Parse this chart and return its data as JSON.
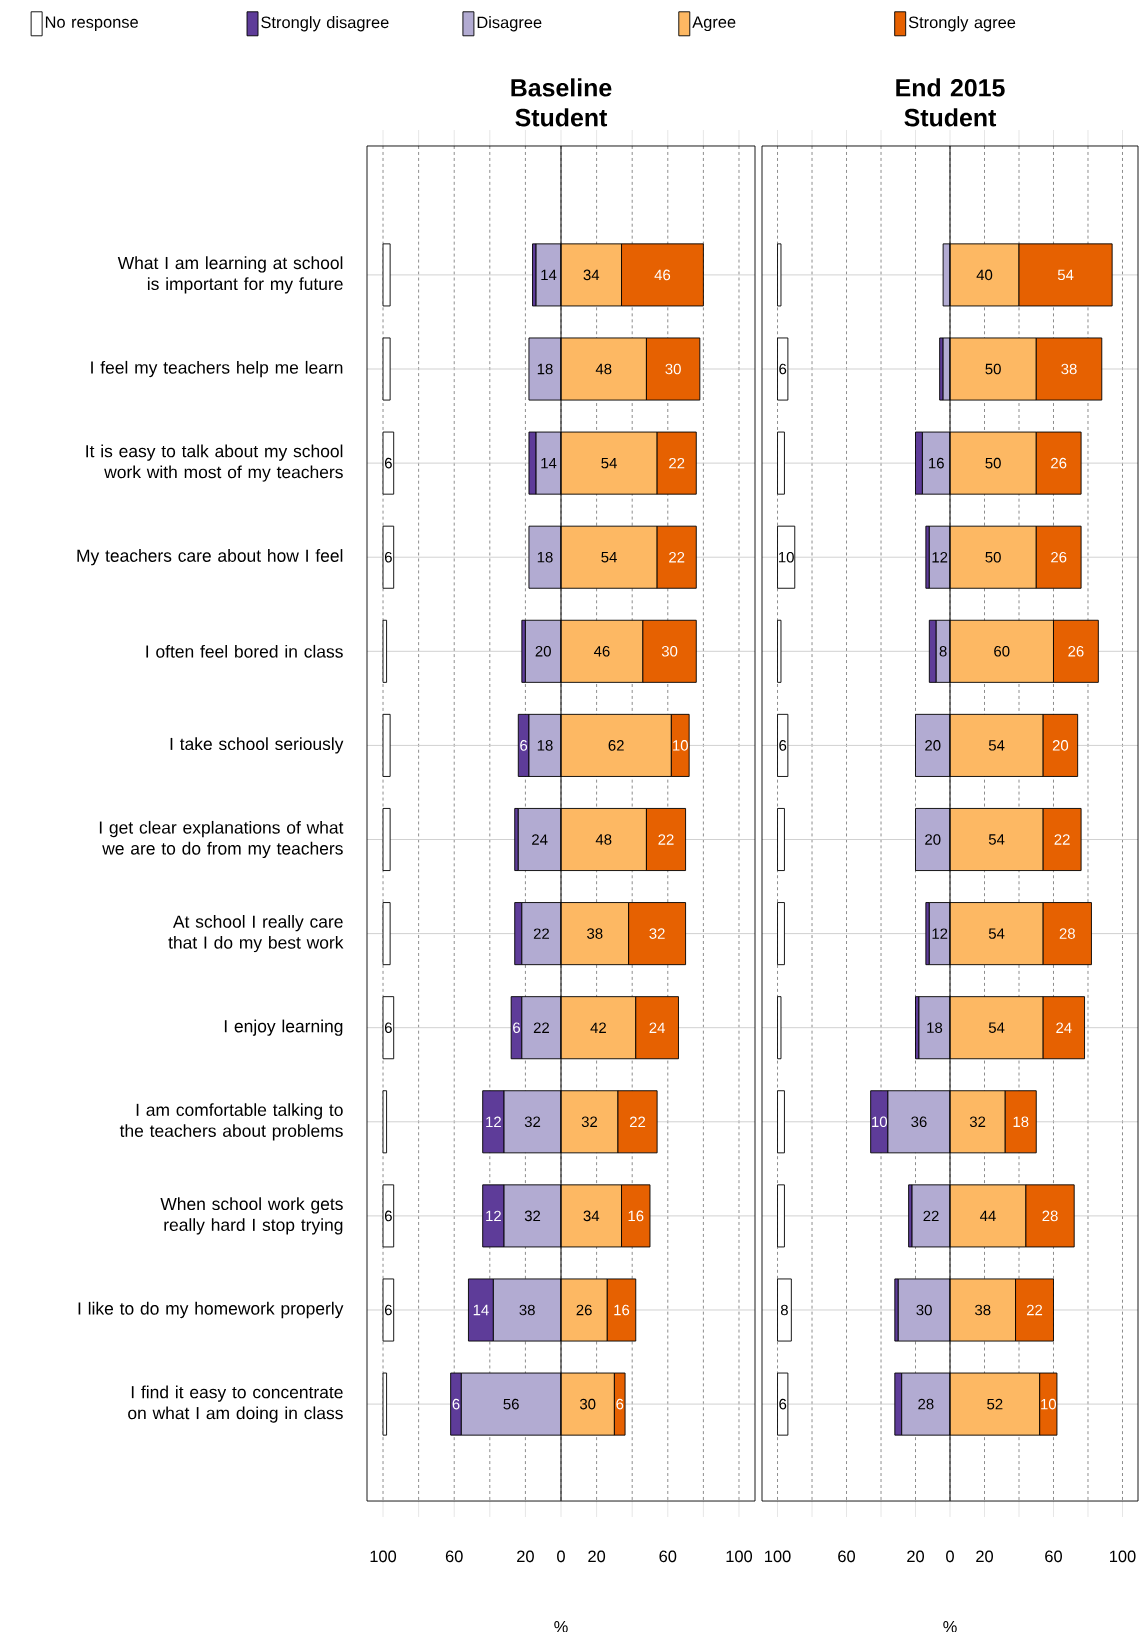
{
  "chart_data": [
    {
      "type": "bar",
      "orientation": "horizontal",
      "title": "Baseline Student",
      "xlabel": "%",
      "categories": [
        "What I am learning at school is important for my future",
        "I feel my teachers help me learn",
        "It is easy to talk about my school work with most of my teachers",
        "My teachers care about how I feel",
        "I often feel bored in class",
        "I take school seriously",
        "I get clear explanations of what we are to do from my teachers",
        "At school I really care that I do my best work",
        "I enjoy learning",
        "I am comfortable talking to the teachers about problems",
        "When school work gets really hard I stop trying",
        "I like to do my homework properly",
        "I find it easy to concentrate on what I am doing in class"
      ],
      "xlim": [
        -109,
        109
      ],
      "xticks": [
        {
          "value": -100,
          "label": "100"
        },
        {
          "value": -80,
          "label": null
        },
        {
          "value": -60,
          "label": "60"
        },
        {
          "value": -40,
          "label": null
        },
        {
          "value": -20,
          "label": "20"
        },
        0,
        20,
        {
          "value": 40,
          "label": null
        },
        60,
        {
          "value": 80,
          "label": null
        },
        100
      ],
      "grid": true,
      "legend": "top",
      "ref_lines": [
        {
          "axis": "x",
          "value": 0,
          "color": "#000000"
        }
      ],
      "series": [
        {
          "name": "No response",
          "color": "#ffffff",
          "values": [
            4,
            4,
            6,
            6,
            2,
            4,
            4,
            4,
            6,
            2,
            6,
            6,
            2
          ],
          "base": [
            -100,
            -100,
            -100,
            -100,
            -100,
            -100,
            -100,
            -100,
            -100,
            -100,
            -100,
            -100,
            -100
          ],
          "value_labels": [
            null,
            null,
            "6",
            "6",
            null,
            null,
            null,
            null,
            "6",
            null,
            "6",
            "6",
            null
          ]
        },
        {
          "name": "Strongly disagree",
          "color": "#5e3c99",
          "values": [
            -2,
            null,
            -4,
            null,
            -2,
            -6,
            -2,
            -4,
            -6,
            -12,
            -12,
            -14,
            -6
          ],
          "base": [
            -14,
            null,
            -14,
            null,
            -20,
            -18,
            -24,
            -22,
            -22,
            -32,
            -32,
            -38,
            -56
          ],
          "value_labels": [
            null,
            null,
            null,
            null,
            null,
            "6",
            null,
            null,
            "6",
            "12",
            "12",
            "14",
            "6"
          ]
        },
        {
          "name": "Disagree",
          "color": "#b2abd2",
          "values": [
            -14,
            -18,
            -14,
            -18,
            -20,
            -18,
            -24,
            -22,
            -22,
            -32,
            -32,
            -38,
            -56
          ],
          "base": [
            0,
            0,
            0,
            0,
            0,
            0,
            0,
            0,
            0,
            0,
            0,
            0,
            0
          ],
          "value_labels": [
            "14",
            "18",
            "14",
            "18",
            "20",
            "18",
            "24",
            "22",
            "22",
            "32",
            "32",
            "38",
            "56"
          ]
        },
        {
          "name": "Agree",
          "color": "#fdb863",
          "values": [
            34,
            48,
            54,
            54,
            46,
            62,
            48,
            38,
            42,
            32,
            34,
            26,
            30
          ],
          "base": [
            0,
            0,
            0,
            0,
            0,
            0,
            0,
            0,
            0,
            0,
            0,
            0,
            0
          ],
          "value_labels": [
            "34",
            "48",
            "54",
            "54",
            "46",
            "62",
            "48",
            "38",
            "42",
            "32",
            "34",
            "26",
            "30"
          ]
        },
        {
          "name": "Strongly agree",
          "color": "#e66101",
          "values": [
            46,
            30,
            22,
            22,
            30,
            10,
            22,
            32,
            24,
            22,
            16,
            16,
            6
          ],
          "base": [
            34,
            48,
            54,
            54,
            46,
            62,
            48,
            38,
            42,
            32,
            34,
            26,
            30
          ],
          "value_labels": [
            "46",
            "30",
            "22",
            "22",
            "30",
            "10",
            "22",
            "32",
            "24",
            "22",
            "16",
            "16",
            "6"
          ]
        }
      ]
    },
    {
      "type": "bar",
      "orientation": "horizontal",
      "title": "End 2015 Student",
      "xlabel": "%",
      "tick_labels": "x",
      "categories": [
        null,
        null,
        null,
        null,
        null,
        null,
        null,
        null,
        null,
        null,
        null,
        null,
        null
      ],
      "xlim": [
        -109,
        109
      ],
      "xticks": [
        {
          "value": -100,
          "label": "100"
        },
        {
          "value": -80,
          "label": null
        },
        {
          "value": -60,
          "label": "60"
        },
        {
          "value": -40,
          "label": null
        },
        {
          "value": -20,
          "label": "20"
        },
        0,
        20,
        {
          "value": 40,
          "label": null
        },
        60,
        {
          "value": 80,
          "label": null
        },
        100
      ],
      "grid": true,
      "ref_lines": [
        {
          "axis": "x",
          "value": 0,
          "color": "#000000"
        }
      ],
      "series": [
        {
          "color": "#ffffff",
          "values": [
            2,
            6,
            4,
            10,
            2,
            6,
            4,
            4,
            2,
            4,
            4,
            8,
            6
          ],
          "base": [
            -100,
            -100,
            -100,
            -100,
            -100,
            -100,
            -100,
            -100,
            -100,
            -100,
            -100,
            -100,
            -100
          ],
          "value_labels": [
            null,
            "6",
            null,
            "10",
            null,
            "6",
            null,
            null,
            null,
            null,
            null,
            "8",
            "6"
          ]
        },
        {
          "color": "#5e3c99",
          "values": [
            null,
            -2,
            -4,
            -2,
            -4,
            null,
            null,
            -2,
            -2,
            -10,
            -2,
            -2,
            -4
          ],
          "base": [
            null,
            -4,
            -16,
            -12,
            -8,
            null,
            null,
            -12,
            -18,
            -36,
            -22,
            -30,
            -28
          ],
          "value_labels": [
            null,
            null,
            null,
            null,
            null,
            null,
            null,
            null,
            null,
            "10",
            null,
            null,
            null
          ]
        },
        {
          "color": "#b2abd2",
          "values": [
            -4,
            -4,
            -16,
            -12,
            -8,
            -20,
            -20,
            -12,
            -18,
            -36,
            -22,
            -30,
            -28
          ],
          "base": [
            0,
            0,
            0,
            0,
            0,
            0,
            0,
            0,
            0,
            0,
            0,
            0,
            0
          ],
          "value_labels": [
            null,
            null,
            "16",
            "12",
            "8",
            "20",
            "20",
            "12",
            "18",
            "36",
            "22",
            "30",
            "28"
          ]
        },
        {
          "color": "#fdb863",
          "values": [
            40,
            50,
            50,
            50,
            60,
            54,
            54,
            54,
            54,
            32,
            44,
            38,
            52
          ],
          "base": [
            0,
            0,
            0,
            0,
            0,
            0,
            0,
            0,
            0,
            0,
            0,
            0,
            0
          ],
          "value_labels": [
            "40",
            "50",
            "50",
            "50",
            "60",
            "54",
            "54",
            "54",
            "54",
            "32",
            "44",
            "38",
            "52"
          ]
        },
        {
          "color": "#e66101",
          "values": [
            54,
            38,
            26,
            26,
            26,
            20,
            22,
            28,
            24,
            18,
            28,
            22,
            10
          ],
          "base": [
            40,
            50,
            50,
            50,
            60,
            54,
            54,
            54,
            54,
            32,
            44,
            38,
            52
          ],
          "value_labels": [
            "54",
            "38",
            "26",
            "26",
            "26",
            "20",
            "22",
            "28",
            "24",
            "18",
            "28",
            "22",
            "10"
          ]
        }
      ]
    }
  ]
}
